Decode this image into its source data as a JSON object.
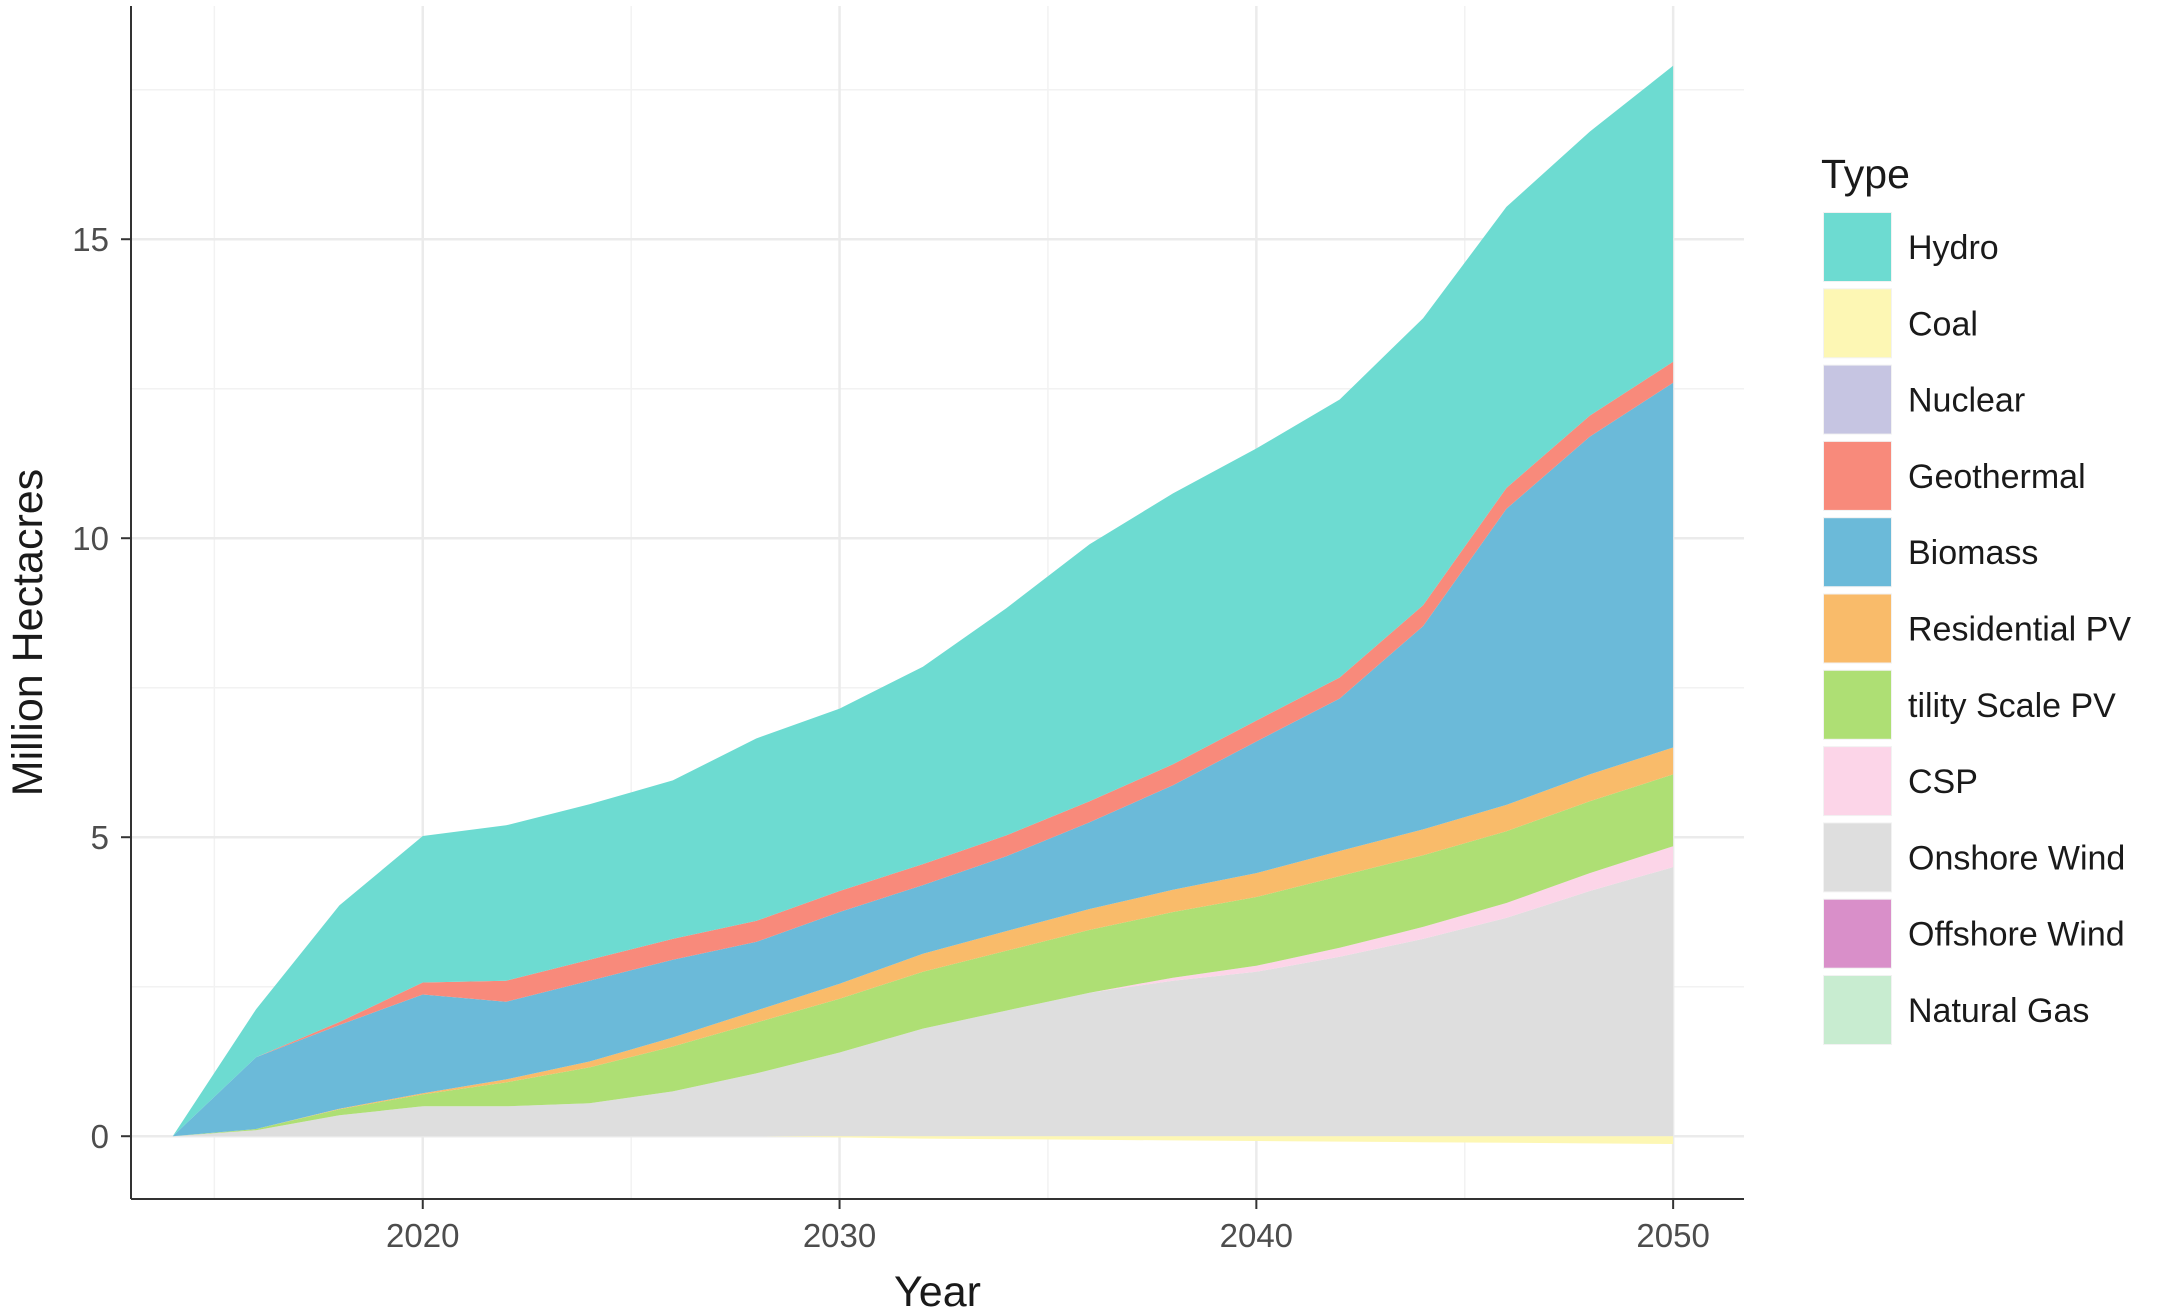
{
  "chart_data": {
    "type": "area",
    "stacked": true,
    "xlabel": "Year",
    "ylabel": "Million Hectacres",
    "xlim": [
      2013,
      2051.7
    ],
    "ylim": [
      -1.05,
      18.9
    ],
    "x_ticks": [
      2020,
      2030,
      2040,
      2050
    ],
    "y_ticks": [
      0,
      5,
      10,
      15
    ],
    "grid": true,
    "legend": {
      "title": "Type",
      "position": "right"
    },
    "x": [
      2014,
      2016,
      2018,
      2020,
      2022,
      2024,
      2026,
      2028,
      2030,
      2032,
      2034,
      2036,
      2038,
      2040,
      2042,
      2044,
      2046,
      2048,
      2050
    ],
    "series": [
      {
        "name": "Natural Gas",
        "color": "#c8ecd0",
        "values": [
          0,
          0,
          0,
          0,
          0,
          0,
          0,
          0,
          0,
          0,
          0,
          0,
          0,
          0,
          0,
          0,
          0,
          0,
          0
        ]
      },
      {
        "name": "Offshore Wind",
        "color": "#d98fc9",
        "values": [
          0,
          0,
          0,
          0,
          0,
          0,
          0,
          0,
          0,
          0,
          0,
          0,
          0,
          0,
          0,
          0,
          0,
          0,
          0
        ]
      },
      {
        "name": "Onshore Wind",
        "color": "#dedede",
        "values": [
          0,
          0.1,
          0.35,
          0.5,
          0.5,
          0.55,
          0.75,
          1.05,
          1.4,
          1.8,
          2.1,
          2.4,
          2.6,
          2.75,
          3.0,
          3.3,
          3.65,
          4.1,
          4.5
        ]
      },
      {
        "name": "CSP",
        "color": "#fcd5e8",
        "values": [
          0,
          0,
          0,
          0,
          0,
          0,
          0,
          0,
          0,
          0,
          0,
          0,
          0.05,
          0.1,
          0.15,
          0.2,
          0.25,
          0.3,
          0.35
        ]
      },
      {
        "name": "tility Scale PV",
        "color": "#aedf74",
        "values": [
          0,
          0.02,
          0.1,
          0.2,
          0.4,
          0.6,
          0.75,
          0.85,
          0.9,
          0.95,
          1.0,
          1.05,
          1.1,
          1.15,
          1.2,
          1.2,
          1.2,
          1.2,
          1.2
        ]
      },
      {
        "name": "Residential PV",
        "color": "#f9bb6a",
        "values": [
          0,
          0,
          0.01,
          0.02,
          0.05,
          0.1,
          0.15,
          0.2,
          0.25,
          0.3,
          0.33,
          0.35,
          0.37,
          0.4,
          0.42,
          0.43,
          0.44,
          0.45,
          0.45
        ]
      },
      {
        "name": "Biomass",
        "color": "#6bbad9",
        "values": [
          0,
          1.2,
          1.4,
          1.65,
          1.3,
          1.35,
          1.3,
          1.15,
          1.2,
          1.15,
          1.25,
          1.45,
          1.75,
          2.2,
          2.55,
          3.4,
          4.95,
          5.65,
          6.1
        ]
      },
      {
        "name": "Geothermal",
        "color": "#f88a7b",
        "values": [
          0,
          0,
          0.05,
          0.2,
          0.35,
          0.35,
          0.35,
          0.35,
          0.35,
          0.35,
          0.35,
          0.35,
          0.35,
          0.35,
          0.35,
          0.35,
          0.35,
          0.35,
          0.35
        ]
      },
      {
        "name": "Nuclear",
        "color": "#c6c5e2",
        "values": [
          0,
          0,
          0,
          0,
          0,
          0,
          0,
          0,
          0,
          0,
          0,
          0,
          0,
          0,
          0,
          0,
          0,
          0,
          0
        ]
      },
      {
        "name": "Coal",
        "color": "#fdf7b4",
        "values": [
          0,
          0,
          0,
          0,
          0,
          0,
          0,
          0,
          0,
          0,
          0,
          0,
          0,
          0,
          0,
          0,
          0,
          0,
          0
        ]
      },
      {
        "name": "Hydro",
        "color": "#6ddbd1",
        "values": [
          0,
          0.8,
          1.95,
          2.45,
          2.6,
          2.6,
          2.65,
          3.05,
          3.05,
          3.3,
          3.8,
          4.3,
          4.53,
          4.55,
          4.65,
          4.8,
          4.7,
          4.75,
          4.95
        ]
      }
    ],
    "legend_order": [
      "Hydro",
      "Coal",
      "Nuclear",
      "Geothermal",
      "Biomass",
      "Residential PV",
      "tility Scale PV",
      "CSP",
      "Onshore Wind",
      "Offshore Wind",
      "Natural Gas"
    ],
    "coal_below_zero": [
      0,
      0,
      0,
      0,
      0,
      0,
      0,
      0,
      0.02,
      0.04,
      0.05,
      0.06,
      0.07,
      0.08,
      0.09,
      0.1,
      0.11,
      0.12,
      0.13
    ]
  }
}
